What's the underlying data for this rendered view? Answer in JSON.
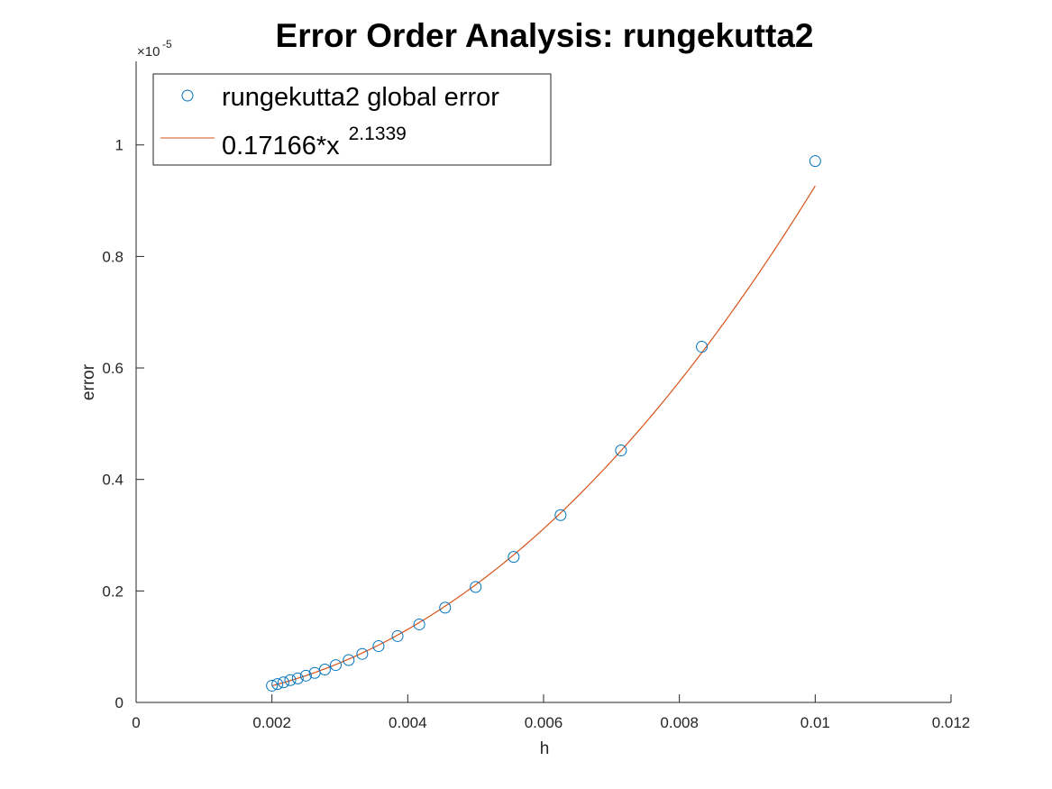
{
  "chart_data": {
    "type": "scatter",
    "title": "Error Order Analysis: rungekutta2",
    "xlabel": "h",
    "ylabel": "error",
    "xlim": [
      0,
      0.012
    ],
    "ylim": [
      0,
      1.15
    ],
    "y_exponent": {
      "base": "×10",
      "power": "-5"
    },
    "x_ticks": [
      {
        "value": 0,
        "label": "0"
      },
      {
        "value": 0.002,
        "label": "0.002"
      },
      {
        "value": 0.004,
        "label": "0.004"
      },
      {
        "value": 0.006,
        "label": "0.006"
      },
      {
        "value": 0.008,
        "label": "0.008"
      },
      {
        "value": 0.01,
        "label": "0.01"
      },
      {
        "value": 0.012,
        "label": "0.012"
      }
    ],
    "y_ticks": [
      {
        "value": 0,
        "label": "0"
      },
      {
        "value": 0.2,
        "label": "0.2"
      },
      {
        "value": 0.4,
        "label": "0.4"
      },
      {
        "value": 0.6,
        "label": "0.6"
      },
      {
        "value": 0.8,
        "label": "0.8"
      },
      {
        "value": 1,
        "label": "1"
      }
    ],
    "grid": false,
    "legend_position": "top-left",
    "series": [
      {
        "name": "rungekutta2 global error",
        "kind": "markers",
        "marker": "circle",
        "color": "#0072BD",
        "x": [
          0.002,
          0.00208,
          0.00217,
          0.00227,
          0.00238,
          0.0025,
          0.00263,
          0.00278,
          0.00294,
          0.00313,
          0.00333,
          0.00357,
          0.00385,
          0.00417,
          0.00455,
          0.005,
          0.00556,
          0.00625,
          0.00714,
          0.00833,
          0.01
        ],
        "y": [
          0.03,
          0.033,
          0.036,
          0.04,
          0.043,
          0.048,
          0.053,
          0.059,
          0.067,
          0.076,
          0.087,
          0.101,
          0.119,
          0.14,
          0.17,
          0.207,
          0.261,
          0.336,
          0.452,
          0.638,
          0.971
        ]
      },
      {
        "name_prefix": "0.17166*x",
        "name_sup": "2.1339",
        "kind": "line",
        "color": "#D95319",
        "coefficient": 0.17166,
        "exponent": 2.1339,
        "x_range": [
          0.002,
          0.01
        ]
      }
    ]
  }
}
